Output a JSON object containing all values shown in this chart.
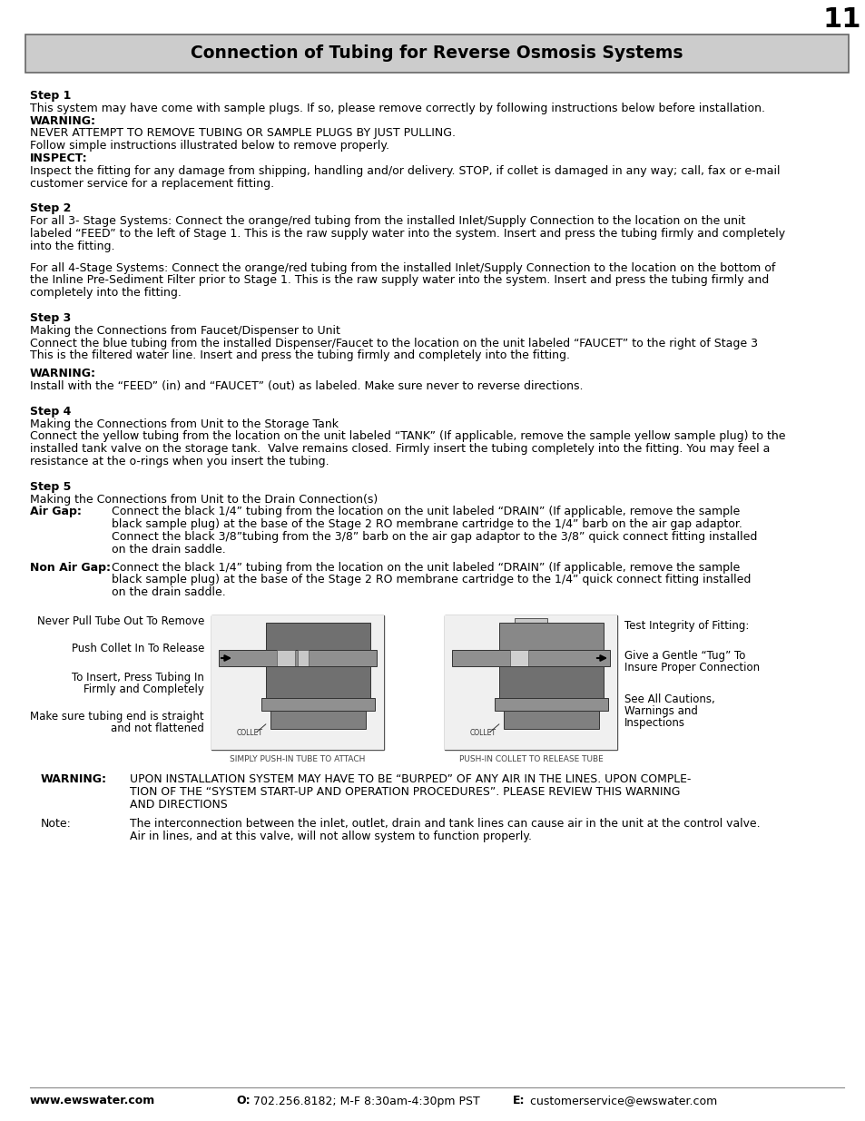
{
  "page_number": "11",
  "title": "Connection of Tubing for Reverse Osmosis Systems",
  "title_bg": "#d0d0d0",
  "bg_color": "#ffffff",
  "body_sections": [
    {
      "type": "heading",
      "text": "Step 1"
    },
    {
      "type": "body",
      "text": "This system may have come with sample plugs. If so, please remove correctly by following instructions below before installation."
    },
    {
      "type": "bold_inline",
      "text": "WARNING:"
    },
    {
      "type": "body",
      "text": "NEVER ATTEMPT TO REMOVE TUBING OR SAMPLE PLUGS BY JUST PULLING."
    },
    {
      "type": "body",
      "text": "Follow simple instructions illustrated below to remove properly."
    },
    {
      "type": "bold_inline",
      "text": "INSPECT:"
    },
    {
      "type": "body",
      "text": "Inspect the fitting for any damage from shipping, handling and/or delivery. STOP, if collet is damaged in any way; call, fax or e-mail"
    },
    {
      "type": "body",
      "text": "customer service for a replacement fitting."
    },
    {
      "type": "gap",
      "size": 10
    },
    {
      "type": "heading",
      "text": "Step 2"
    },
    {
      "type": "body",
      "text": "For all 3- Stage Systems: Connect the orange/red tubing from the installed Inlet/Supply Connection to the location on the unit"
    },
    {
      "type": "body",
      "text": "labeled “FEED” to the left of Stage 1. This is the raw supply water into the system. Insert and press the tubing firmly and completely"
    },
    {
      "type": "body",
      "text": "into the fitting."
    },
    {
      "type": "gap",
      "size": 10
    },
    {
      "type": "body",
      "text": "For all 4-Stage Systems: Connect the orange/red tubing from the installed Inlet/Supply Connection to the location on the bottom of"
    },
    {
      "type": "body",
      "text": "the Inline Pre-Sediment Filter prior to Stage 1. This is the raw supply water into the system. Insert and press the tubing firmly and"
    },
    {
      "type": "body",
      "text": "completely into the fitting."
    },
    {
      "type": "gap",
      "size": 10
    },
    {
      "type": "heading",
      "text": "Step 3"
    },
    {
      "type": "body",
      "text": "Making the Connections from Faucet/Dispenser to Unit"
    },
    {
      "type": "body",
      "text": "Connect the blue tubing from the installed Dispenser/Faucet to the location on the unit labeled “FAUCET” to the right of Stage 3"
    },
    {
      "type": "body",
      "text": "This is the filtered water line. Insert and press the tubing firmly and completely into the fitting."
    },
    {
      "type": "gap",
      "size": 6
    },
    {
      "type": "bold_inline",
      "text": "WARNING:"
    },
    {
      "type": "body",
      "text": "Install with the “FEED” (in) and “FAUCET” (out) as labeled. Make sure never to reverse directions."
    },
    {
      "type": "gap",
      "size": 10
    },
    {
      "type": "heading",
      "text": "Step 4"
    },
    {
      "type": "body",
      "text": "Making the Connections from Unit to the Storage Tank"
    },
    {
      "type": "body",
      "text": "Connect the yellow tubing from the location on the unit labeled “TANK” (If applicable, remove the sample yellow sample plug) to the"
    },
    {
      "type": "body",
      "text": "installed tank valve on the storage tank.  Valve remains closed. Firmly insert the tubing completely into the fitting. You may feel a"
    },
    {
      "type": "body",
      "text": "resistance at the o-rings when you insert the tubing."
    },
    {
      "type": "gap",
      "size": 10
    },
    {
      "type": "heading",
      "text": "Step 5"
    },
    {
      "type": "body",
      "text": "Making the Connections from Unit to the Drain Connection(s)"
    },
    {
      "type": "twocol",
      "col1_bold": "Air Gap:",
      "col1_indent": 90,
      "col1_text": "Connect the black 1/4” tubing from the location on the unit labeled “DRAIN” (If applicable, remove the sample\nblack sample plug) at the base of the Stage 2 RO membrane cartridge to the 1/4” barb on the air gap adaptor.\nConnect the black 3/8”tubing from the 3/8” barb on the air gap adaptor to the 3/8” quick connect fitting installed\non the drain saddle."
    },
    {
      "type": "gap",
      "size": 6
    },
    {
      "type": "twocol",
      "col1_bold": "Non Air Gap:",
      "col1_indent": 90,
      "col1_text": "Connect the black 1/4” tubing from the location on the unit labeled “DRAIN” (If applicable, remove the sample\nblack sample plug) at the base of the Stage 2 RO membrane cartridge to the 1/4” quick connect fitting installed\non the drain saddle."
    }
  ],
  "diagram_left_labels": [
    [
      "Never Pull Tube Out To Remove",
      0
    ],
    [
      "Push Collet In To Release",
      30
    ],
    [
      "To Insert, Press Tubing In\nFirmly and Completely",
      62
    ],
    [
      "Make sure tubing end is straight\nand not flattened",
      105
    ]
  ],
  "diagram_right_labels": [
    [
      "Test Integrity of Fitting:",
      5
    ],
    [
      "Give a Gentle “Tug” To\nInsure Proper Connection",
      38
    ],
    [
      "See All Cautions,\nWarnings and\nInspections",
      86
    ]
  ],
  "diagram_left_caption": "SIMPLY PUSH-IN TUBE TO ATTACH",
  "diagram_right_caption": "PUSH-IN COLLET TO RELEASE TUBE",
  "warning_bold": "WARNING:",
  "warning_text": "UPON INSTALLATION SYSTEM MAY HAVE TO BE “BURPED” OF ANY AIR IN THE LINES. UPON COMPLE-\nTION OF THE “SYSTEM START-UP AND OPERATION PROCEDURES”. PLEASE REVIEW THIS WARNING\nAND DIRECTIONS",
  "note_bold": "Note:",
  "note_text": "The interconnection between the inlet, outlet, drain and tank lines can cause air in the unit at the control valve.\nAir in lines, and at this valve, will not allow system to function properly.",
  "footer_web_bold": "www.ewswater.com",
  "footer_o_bold": "O:",
  "footer_o_text": " 702.256.8182; M-F 8:30am-4:30pm PST",
  "footer_e_bold": "E:",
  "footer_e_text": " customerservice@ewswater.com"
}
